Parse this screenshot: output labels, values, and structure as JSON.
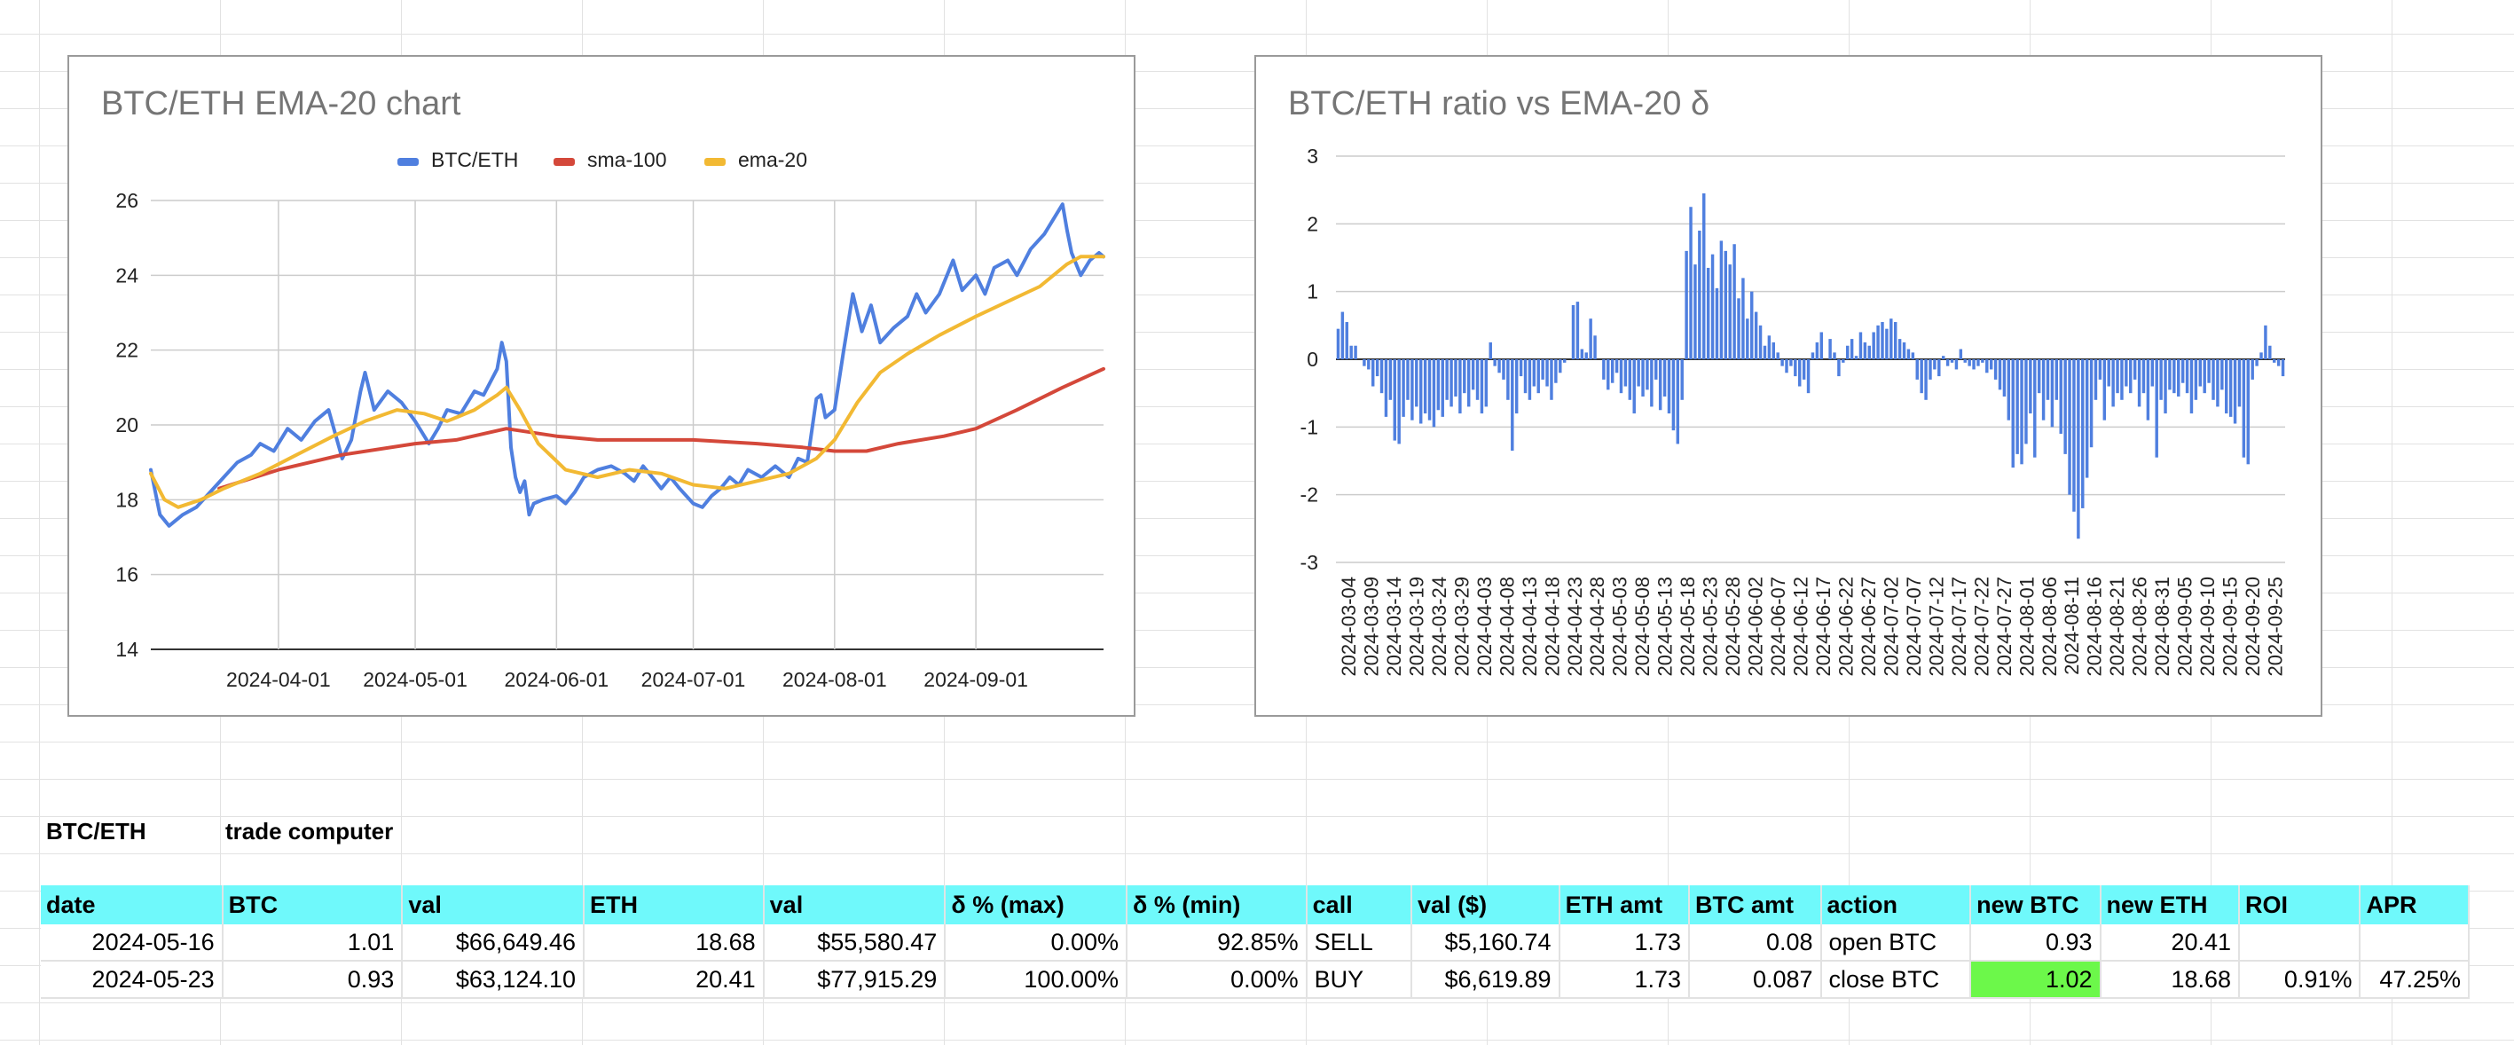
{
  "sheet": {
    "label_pair": "BTC/ETH",
    "label_tool": "trade computer",
    "table": {
      "headers": [
        "date",
        "BTC",
        "val",
        "ETH",
        "val",
        "δ % (max)",
        "δ % (min)",
        "call",
        "val ($)",
        "ETH amt",
        "BTC amt",
        "action",
        "new BTC",
        "new ETH",
        "ROI",
        "APR"
      ],
      "rows": [
        [
          "2024-05-16",
          "1.01",
          "$66,649.46",
          "18.68",
          "$55,580.47",
          "0.00%",
          "92.85%",
          "SELL",
          "$5,160.74",
          "1.73",
          "0.08",
          "open BTC",
          "0.93",
          "20.41",
          "",
          ""
        ],
        [
          "2024-05-23",
          "0.93",
          "$63,124.10",
          "20.41",
          "$77,915.29",
          "100.00%",
          "0.00%",
          "BUY",
          "$6,619.89",
          "1.73",
          "0.087",
          "close BTC",
          "1.02",
          "18.68",
          "0.91%",
          "47.25%"
        ]
      ],
      "highlight_color": "#6cf84a",
      "header_color": "#6ff9fb"
    }
  },
  "chart_data": [
    {
      "type": "line",
      "title": "BTC/ETH EMA-20 chart",
      "xlabel": "",
      "ylabel": "",
      "x_range": [
        "2024-03-04",
        "2024-09-29"
      ],
      "x_ticks": [
        "2024-04-01",
        "2024-05-01",
        "2024-06-01",
        "2024-07-01",
        "2024-08-01",
        "2024-09-01"
      ],
      "ylim": [
        14,
        26
      ],
      "y_ticks": [
        14,
        16,
        18,
        20,
        22,
        24,
        26
      ],
      "grid": true,
      "legend_position": "top",
      "series": [
        {
          "name": "BTC/ETH",
          "color": "#4f7fdf",
          "points": [
            [
              "2024-03-04",
              18.8
            ],
            [
              "2024-03-06",
              17.6
            ],
            [
              "2024-03-08",
              17.3
            ],
            [
              "2024-03-11",
              17.6
            ],
            [
              "2024-03-14",
              17.8
            ],
            [
              "2024-03-17",
              18.2
            ],
            [
              "2024-03-20",
              18.6
            ],
            [
              "2024-03-23",
              19.0
            ],
            [
              "2024-03-26",
              19.2
            ],
            [
              "2024-03-28",
              19.5
            ],
            [
              "2024-03-31",
              19.3
            ],
            [
              "2024-04-03",
              19.9
            ],
            [
              "2024-04-06",
              19.6
            ],
            [
              "2024-04-09",
              20.1
            ],
            [
              "2024-04-12",
              20.4
            ],
            [
              "2024-04-15",
              19.1
            ],
            [
              "2024-04-17",
              19.6
            ],
            [
              "2024-04-19",
              20.9
            ],
            [
              "2024-04-20",
              21.4
            ],
            [
              "2024-04-22",
              20.4
            ],
            [
              "2024-04-25",
              20.9
            ],
            [
              "2024-04-28",
              20.6
            ],
            [
              "2024-05-01",
              20.1
            ],
            [
              "2024-05-04",
              19.5
            ],
            [
              "2024-05-06",
              19.9
            ],
            [
              "2024-05-08",
              20.4
            ],
            [
              "2024-05-11",
              20.3
            ],
            [
              "2024-05-14",
              20.9
            ],
            [
              "2024-05-16",
              20.8
            ],
            [
              "2024-05-19",
              21.5
            ],
            [
              "2024-05-20",
              22.2
            ],
            [
              "2024-05-21",
              21.7
            ],
            [
              "2024-05-22",
              19.4
            ],
            [
              "2024-05-23",
              18.6
            ],
            [
              "2024-05-24",
              18.2
            ],
            [
              "2024-05-25",
              18.5
            ],
            [
              "2024-05-26",
              17.6
            ],
            [
              "2024-05-27",
              17.9
            ],
            [
              "2024-05-29",
              18.0
            ],
            [
              "2024-06-01",
              18.1
            ],
            [
              "2024-06-03",
              17.9
            ],
            [
              "2024-06-05",
              18.2
            ],
            [
              "2024-06-07",
              18.6
            ],
            [
              "2024-06-10",
              18.8
            ],
            [
              "2024-06-13",
              18.9
            ],
            [
              "2024-06-16",
              18.7
            ],
            [
              "2024-06-18",
              18.5
            ],
            [
              "2024-06-20",
              18.9
            ],
            [
              "2024-06-22",
              18.6
            ],
            [
              "2024-06-24",
              18.3
            ],
            [
              "2024-06-26",
              18.6
            ],
            [
              "2024-06-28",
              18.3
            ],
            [
              "2024-07-01",
              17.9
            ],
            [
              "2024-07-03",
              17.8
            ],
            [
              "2024-07-05",
              18.1
            ],
            [
              "2024-07-07",
              18.3
            ],
            [
              "2024-07-09",
              18.6
            ],
            [
              "2024-07-11",
              18.4
            ],
            [
              "2024-07-13",
              18.8
            ],
            [
              "2024-07-16",
              18.6
            ],
            [
              "2024-07-19",
              18.9
            ],
            [
              "2024-07-22",
              18.6
            ],
            [
              "2024-07-24",
              19.1
            ],
            [
              "2024-07-26",
              19.0
            ],
            [
              "2024-07-28",
              20.7
            ],
            [
              "2024-07-29",
              20.8
            ],
            [
              "2024-07-30",
              20.2
            ],
            [
              "2024-08-01",
              20.4
            ],
            [
              "2024-08-03",
              22.0
            ],
            [
              "2024-08-05",
              23.5
            ],
            [
              "2024-08-07",
              22.5
            ],
            [
              "2024-08-09",
              23.2
            ],
            [
              "2024-08-11",
              22.2
            ],
            [
              "2024-08-14",
              22.6
            ],
            [
              "2024-08-17",
              22.9
            ],
            [
              "2024-08-19",
              23.5
            ],
            [
              "2024-08-21",
              23.0
            ],
            [
              "2024-08-24",
              23.5
            ],
            [
              "2024-08-27",
              24.4
            ],
            [
              "2024-08-29",
              23.6
            ],
            [
              "2024-09-01",
              24.0
            ],
            [
              "2024-09-03",
              23.5
            ],
            [
              "2024-09-05",
              24.2
            ],
            [
              "2024-09-08",
              24.4
            ],
            [
              "2024-09-10",
              24.0
            ],
            [
              "2024-09-13",
              24.7
            ],
            [
              "2024-09-16",
              25.1
            ],
            [
              "2024-09-18",
              25.5
            ],
            [
              "2024-09-20",
              25.9
            ],
            [
              "2024-09-21",
              25.2
            ],
            [
              "2024-09-22",
              24.6
            ],
            [
              "2024-09-24",
              24.0
            ],
            [
              "2024-09-26",
              24.4
            ],
            [
              "2024-09-28",
              24.6
            ],
            [
              "2024-09-29",
              24.5
            ]
          ]
        },
        {
          "name": "sma-100",
          "color": "#d4483a",
          "points": [
            [
              "2024-03-19",
              18.3
            ],
            [
              "2024-04-01",
              18.8
            ],
            [
              "2024-04-15",
              19.2
            ],
            [
              "2024-05-01",
              19.5
            ],
            [
              "2024-05-10",
              19.6
            ],
            [
              "2024-05-21",
              19.9
            ],
            [
              "2024-06-01",
              19.7
            ],
            [
              "2024-06-10",
              19.6
            ],
            [
              "2024-06-20",
              19.6
            ],
            [
              "2024-07-01",
              19.6
            ],
            [
              "2024-07-15",
              19.5
            ],
            [
              "2024-07-25",
              19.4
            ],
            [
              "2024-08-01",
              19.3
            ],
            [
              "2024-08-08",
              19.3
            ],
            [
              "2024-08-15",
              19.5
            ],
            [
              "2024-08-25",
              19.7
            ],
            [
              "2024-09-01",
              19.9
            ],
            [
              "2024-09-10",
              20.4
            ],
            [
              "2024-09-20",
              21.0
            ],
            [
              "2024-09-29",
              21.5
            ]
          ]
        },
        {
          "name": "ema-20",
          "color": "#f2b933",
          "points": [
            [
              "2024-03-04",
              18.7
            ],
            [
              "2024-03-07",
              18.0
            ],
            [
              "2024-03-10",
              17.8
            ],
            [
              "2024-03-15",
              18.0
            ],
            [
              "2024-03-20",
              18.3
            ],
            [
              "2024-03-28",
              18.7
            ],
            [
              "2024-04-05",
              19.2
            ],
            [
              "2024-04-13",
              19.7
            ],
            [
              "2024-04-20",
              20.1
            ],
            [
              "2024-04-27",
              20.4
            ],
            [
              "2024-05-03",
              20.3
            ],
            [
              "2024-05-08",
              20.1
            ],
            [
              "2024-05-14",
              20.4
            ],
            [
              "2024-05-19",
              20.8
            ],
            [
              "2024-05-21",
              21.0
            ],
            [
              "2024-05-24",
              20.4
            ],
            [
              "2024-05-28",
              19.5
            ],
            [
              "2024-06-03",
              18.8
            ],
            [
              "2024-06-10",
              18.6
            ],
            [
              "2024-06-17",
              18.8
            ],
            [
              "2024-06-24",
              18.7
            ],
            [
              "2024-07-01",
              18.4
            ],
            [
              "2024-07-08",
              18.3
            ],
            [
              "2024-07-15",
              18.5
            ],
            [
              "2024-07-22",
              18.7
            ],
            [
              "2024-07-28",
              19.1
            ],
            [
              "2024-08-01",
              19.6
            ],
            [
              "2024-08-06",
              20.6
            ],
            [
              "2024-08-11",
              21.4
            ],
            [
              "2024-08-17",
              21.9
            ],
            [
              "2024-08-24",
              22.4
            ],
            [
              "2024-09-01",
              22.9
            ],
            [
              "2024-09-08",
              23.3
            ],
            [
              "2024-09-15",
              23.7
            ],
            [
              "2024-09-21",
              24.3
            ],
            [
              "2024-09-24",
              24.5
            ],
            [
              "2024-09-29",
              24.5
            ]
          ]
        }
      ]
    },
    {
      "type": "bar",
      "title": "BTC/ETH ratio vs EMA-20 δ",
      "xlabel": "",
      "ylabel": "",
      "ylim": [
        -3,
        3
      ],
      "y_ticks": [
        -3,
        -2,
        -1,
        0,
        1,
        2,
        3
      ],
      "grid": true,
      "color": "#4f7fdf",
      "x_tick_labels": [
        "2024-03-04",
        "2024-03-09",
        "2024-03-14",
        "2024-03-19",
        "2024-03-24",
        "2024-03-29",
        "2024-04-03",
        "2024-04-08",
        "2024-04-13",
        "2024-04-18",
        "2024-04-23",
        "2024-04-28",
        "2024-05-03",
        "2024-05-08",
        "2024-05-13",
        "2024-05-18",
        "2024-05-23",
        "2024-05-28",
        "2024-06-02",
        "2024-06-07",
        "2024-06-12",
        "2024-06-17",
        "2024-06-22",
        "2024-06-27",
        "2024-07-02",
        "2024-07-07",
        "2024-07-12",
        "2024-07-17",
        "2024-07-22",
        "2024-07-27",
        "2024-08-01",
        "2024-08-06",
        "2024-08-11",
        "2024-08-16",
        "2024-08-21",
        "2024-08-26",
        "2024-08-31",
        "2024-09-05",
        "2024-09-10",
        "2024-09-15",
        "2024-09-20",
        "2024-09-25"
      ],
      "values": [
        0.45,
        0.7,
        0.55,
        0.2,
        0.2,
        0.0,
        -0.1,
        -0.15,
        -0.4,
        -0.25,
        -0.5,
        -0.85,
        -0.6,
        -1.2,
        -1.25,
        -0.85,
        -0.6,
        -0.9,
        -0.7,
        -0.95,
        -0.8,
        -0.9,
        -1.0,
        -0.75,
        -0.85,
        -0.6,
        -0.7,
        -0.55,
        -0.8,
        -0.5,
        -0.7,
        -0.45,
        -0.6,
        -0.8,
        -0.7,
        0.25,
        -0.1,
        -0.2,
        -0.3,
        -0.6,
        -1.35,
        -0.8,
        -0.25,
        -0.5,
        -0.6,
        -0.4,
        -0.5,
        -0.3,
        -0.4,
        -0.6,
        -0.35,
        -0.2,
        -0.05,
        0.0,
        0.8,
        0.85,
        0.15,
        0.1,
        0.6,
        0.35,
        0.0,
        -0.3,
        -0.45,
        -0.35,
        -0.2,
        -0.5,
        -0.4,
        -0.6,
        -0.8,
        -0.4,
        -0.55,
        -0.45,
        -0.7,
        -0.3,
        -0.75,
        -0.55,
        -0.8,
        -1.05,
        -1.25,
        -0.6,
        1.6,
        2.25,
        1.4,
        1.9,
        2.45,
        1.35,
        1.55,
        1.05,
        1.75,
        1.6,
        1.4,
        1.7,
        0.9,
        1.2,
        0.6,
        1.0,
        0.7,
        0.5,
        0.2,
        0.35,
        0.25,
        0.1,
        -0.1,
        -0.2,
        -0.1,
        -0.25,
        -0.4,
        -0.3,
        -0.5,
        0.1,
        0.25,
        0.4,
        0.0,
        0.3,
        0.1,
        -0.25,
        -0.05,
        0.2,
        0.3,
        0.05,
        0.4,
        0.25,
        0.2,
        0.4,
        0.5,
        0.55,
        0.45,
        0.6,
        0.55,
        0.3,
        0.25,
        0.15,
        0.1,
        -0.3,
        -0.5,
        -0.6,
        -0.3,
        -0.15,
        -0.25,
        0.05,
        -0.1,
        -0.05,
        -0.15,
        0.15,
        -0.05,
        -0.1,
        -0.15,
        -0.1,
        -0.05,
        -0.2,
        -0.15,
        -0.3,
        -0.45,
        -0.55,
        -0.9,
        -1.6,
        -1.4,
        -1.55,
        -1.25,
        -0.8,
        -1.45,
        -0.5,
        -0.9,
        -0.6,
        -1.0,
        -0.6,
        -1.1,
        -1.4,
        -2.0,
        -2.25,
        -2.65,
        -2.2,
        -1.75,
        -1.3,
        -0.6,
        -0.3,
        -0.9,
        -0.4,
        -0.7,
        -0.5,
        -0.6,
        -0.4,
        -0.5,
        -0.3,
        -0.7,
        -0.5,
        -0.9,
        -0.4,
        -1.45,
        -0.6,
        -0.8,
        -0.45,
        -0.5,
        -0.55,
        -0.35,
        -0.5,
        -0.8,
        -0.6,
        -0.4,
        -0.5,
        -0.35,
        -0.6,
        -0.7,
        -0.45,
        -0.8,
        -0.85,
        -0.95,
        -0.7,
        -1.45,
        -1.55,
        -0.3,
        -0.1,
        0.1,
        0.5,
        0.2,
        -0.05,
        -0.1,
        -0.25
      ]
    }
  ]
}
